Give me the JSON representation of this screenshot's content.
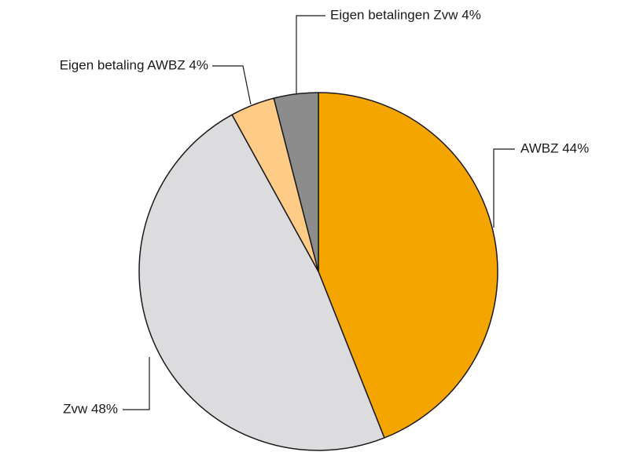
{
  "chart_data": {
    "type": "pie",
    "values": [
      44,
      48,
      4,
      4
    ],
    "value_labels": [
      "AWBZ 44%",
      "Zvw 48%",
      "Eigen betaling AWBZ 4%",
      "Eigen betalingen Zvw 4%"
    ],
    "colors": [
      "#f5a500",
      "#dcdcdf",
      "#ffcc88",
      "#8c8c8c"
    ]
  }
}
